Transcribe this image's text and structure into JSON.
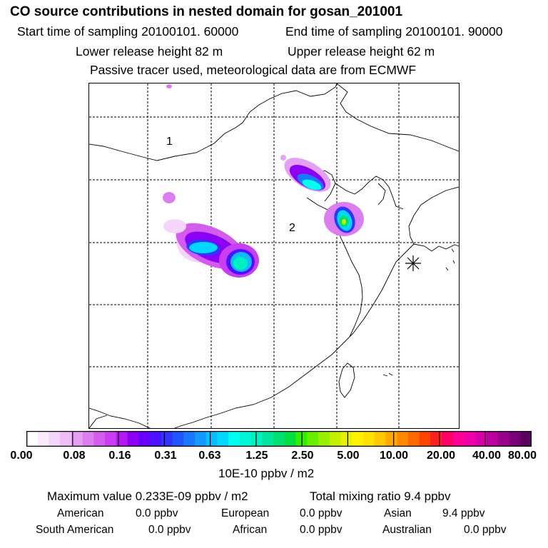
{
  "title": "CO  source contributions in nested domain for gosan_201001",
  "sampling": {
    "start": "Start time of sampling 20100101. 60000",
    "end": "End time of sampling 20100101. 90000"
  },
  "release": {
    "lower": "Lower release height   82 m",
    "upper": "Upper release height   62 m"
  },
  "tracer_note": "Passive tracer used, meteorological data are from ECMWF",
  "map": {
    "region_labels": [
      "2",
      "1"
    ],
    "receptor_marker": "receptor-star-icon"
  },
  "colorbar": {
    "tick_labels": [
      "0.00",
      "0.08",
      "0.16",
      "0.31",
      "0.63",
      "1.25",
      "2.50",
      "5.00",
      "10.00",
      "20.00",
      "40.00",
      "80.00"
    ],
    "unit": "10E-10 ppbv / m2",
    "colors": [
      "#ffffff",
      "#fbeafd",
      "#f5d6fb",
      "#eebcf7",
      "#e5a0f3",
      "#dc7ef0",
      "#d35cee",
      "#c93ef0",
      "#b817f2",
      "#8b00f5",
      "#6600ff",
      "#4d11ff",
      "#3333ff",
      "#1f55ff",
      "#1a77ff",
      "#1499ff",
      "#0fbbff",
      "#00d8ff",
      "#00ffee",
      "#00f7d9",
      "#00efc2",
      "#00e59d",
      "#00e070",
      "#00e040",
      "#33ee00",
      "#66f000",
      "#99f000",
      "#c4f000",
      "#e6f000",
      "#fff200",
      "#ffe100",
      "#ffc800",
      "#ffa800",
      "#ff8a00",
      "#ff6a00",
      "#ff4400",
      "#ff1f1f",
      "#ff0066",
      "#ff0095",
      "#f000a8",
      "#d600a8",
      "#b9009f",
      "#98008c",
      "#7a007a",
      "#5c0060"
    ]
  },
  "stats": {
    "max_value": "Maximum value  0.233E-09 ppbv / m2",
    "total_mixing": "Total mixing ratio        9.4 ppbv",
    "regions": [
      {
        "name": "American",
        "value": "0.0 ppbv"
      },
      {
        "name": "European",
        "value": "0.0 ppbv"
      },
      {
        "name": "Asian",
        "value": "9.4 ppbv"
      },
      {
        "name": "South American",
        "value": "0.0 ppbv"
      },
      {
        "name": "African",
        "value": "0.0 ppbv"
      },
      {
        "name": "Australian",
        "value": "0.0 ppbv"
      }
    ]
  }
}
